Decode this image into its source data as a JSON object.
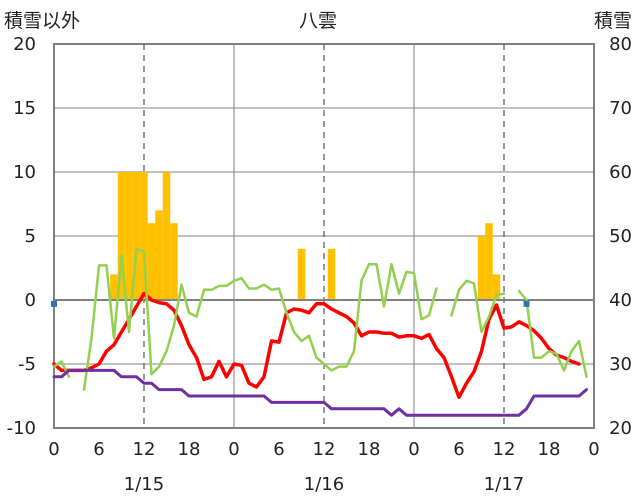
{
  "chart_data": {
    "type": "combo",
    "title": "八雲",
    "left_axis": {
      "label": "積雪以外",
      "range": [
        -10,
        20
      ],
      "ticks": [
        "20",
        "15",
        "10",
        "5",
        "0",
        "-5",
        "-10"
      ]
    },
    "right_axis": {
      "label": "積雪",
      "range": [
        20,
        80
      ],
      "ticks": [
        "80",
        "70",
        "60",
        "50",
        "40",
        "30",
        "20"
      ]
    },
    "x_axis": {
      "unit": "hour",
      "range": [
        0,
        72
      ],
      "tick_labels": [
        "0",
        "6",
        "12",
        "18",
        "0",
        "6",
        "12",
        "18",
        "0",
        "6",
        "12",
        "18",
        "0"
      ],
      "date_labels": [
        {
          "label": "1/15",
          "hour": 12
        },
        {
          "label": "1/16",
          "hour": 36
        },
        {
          "label": "1/17",
          "hour": 60
        }
      ]
    },
    "grid": {
      "day_boundaries_solid": [
        24,
        48
      ],
      "noon_dashed": [
        12,
        36,
        60
      ]
    },
    "colors": {
      "bars": "#ffc000",
      "temperature": "#ff0000",
      "wind": "#92d050",
      "snow_depth": "#7030a0",
      "zero_marker": "#2e75b6",
      "axis": "#808080"
    },
    "series": [
      {
        "type": "bar",
        "axis": "left",
        "color": "#ffc000",
        "points": [
          [
            8,
            2
          ],
          [
            9,
            10
          ],
          [
            10,
            10
          ],
          [
            11,
            10
          ],
          [
            12,
            10
          ],
          [
            13,
            6
          ],
          [
            14,
            7
          ],
          [
            15,
            10
          ],
          [
            16,
            6
          ],
          [
            33,
            4
          ],
          [
            37,
            4
          ],
          [
            57,
            5
          ],
          [
            58,
            6
          ],
          [
            59,
            2
          ]
        ]
      },
      {
        "type": "line",
        "axis": "left",
        "color": "#ff0000",
        "points": [
          [
            0,
            -5
          ],
          [
            1,
            -5.5
          ],
          [
            2,
            -5.5
          ],
          [
            4,
            -5.5
          ],
          [
            5,
            -5.3
          ],
          [
            6,
            -5
          ],
          [
            7,
            -4
          ],
          [
            8,
            -3.5
          ],
          [
            9,
            -2.5
          ],
          [
            10,
            -1.5
          ],
          [
            11,
            -0.5
          ],
          [
            12,
            0.5
          ],
          [
            13,
            0
          ],
          [
            14,
            -0.2
          ],
          [
            15,
            -0.3
          ],
          [
            16,
            -0.8
          ],
          [
            17,
            -2
          ],
          [
            18,
            -3.5
          ],
          [
            19,
            -4.5
          ],
          [
            20,
            -6.2
          ],
          [
            21,
            -6
          ],
          [
            22,
            -4.8
          ],
          [
            23,
            -6
          ],
          [
            24,
            -5
          ],
          [
            25,
            -5.1
          ],
          [
            26,
            -6.5
          ],
          [
            27,
            -6.8
          ],
          [
            28,
            -6
          ],
          [
            29,
            -3.2
          ],
          [
            30,
            -3.3
          ],
          [
            31,
            -1
          ],
          [
            32,
            -0.7
          ],
          [
            33,
            -0.8
          ],
          [
            34,
            -1
          ],
          [
            35,
            -0.3
          ],
          [
            36,
            -0.3
          ],
          [
            37,
            -0.7
          ],
          [
            38,
            -1
          ],
          [
            39,
            -1.3
          ],
          [
            40,
            -1.8
          ],
          [
            41,
            -2.8
          ],
          [
            42,
            -2.5
          ],
          [
            43,
            -2.5
          ],
          [
            44,
            -2.6
          ],
          [
            45,
            -2.6
          ],
          [
            46,
            -2.9
          ],
          [
            47,
            -2.8
          ],
          [
            48,
            -2.8
          ],
          [
            49,
            -3
          ],
          [
            50,
            -2.7
          ],
          [
            51,
            -3.8
          ],
          [
            52,
            -4.5
          ],
          [
            53,
            -6
          ],
          [
            54,
            -7.6
          ],
          [
            55,
            -6.5
          ],
          [
            56,
            -5.6
          ],
          [
            57,
            -4
          ],
          [
            58,
            -1.5
          ],
          [
            59,
            -0.4
          ],
          [
            60,
            -2.2
          ],
          [
            61,
            -2.1
          ],
          [
            62,
            -1.7
          ],
          [
            63,
            -2
          ],
          [
            64,
            -2.4
          ],
          [
            65,
            -3
          ],
          [
            66,
            -3.8
          ],
          [
            67,
            -4.3
          ],
          [
            68,
            -4.5
          ],
          [
            69,
            -4.8
          ],
          [
            70,
            -5
          ]
        ]
      },
      {
        "type": "line",
        "axis": "left",
        "color": "#92d050",
        "segments": [
          [
            [
              0,
              -5.2
            ],
            [
              1,
              -4.8
            ],
            [
              2,
              -6
            ]
          ],
          [
            [
              4,
              -7
            ],
            [
              5,
              -3
            ],
            [
              6,
              2.7
            ],
            [
              7,
              2.7
            ],
            [
              8,
              -3
            ],
            [
              9,
              3.5
            ],
            [
              10,
              -2.5
            ],
            [
              11,
              4
            ],
            [
              12,
              3.8
            ],
            [
              13,
              -5.8
            ],
            [
              14,
              -5.2
            ],
            [
              15,
              -4
            ],
            [
              16,
              -2
            ],
            [
              17,
              1.2
            ],
            [
              18,
              -1
            ],
            [
              19,
              -1.3
            ],
            [
              20,
              0.8
            ],
            [
              21,
              0.8
            ],
            [
              22,
              1.1
            ],
            [
              23,
              1.1
            ],
            [
              24,
              1.5
            ],
            [
              25,
              1.7
            ],
            [
              26,
              0.9
            ],
            [
              27,
              0.9
            ],
            [
              28,
              1.2
            ],
            [
              29,
              0.8
            ],
            [
              30,
              0.9
            ],
            [
              31,
              -1
            ],
            [
              32,
              -2.5
            ],
            [
              33,
              -3.2
            ],
            [
              34,
              -2.8
            ],
            [
              35,
              -4.5
            ],
            [
              36,
              -5
            ],
            [
              37,
              -5.5
            ],
            [
              38,
              -5.2
            ],
            [
              39,
              -5.2
            ],
            [
              40,
              -4
            ],
            [
              41,
              1.5
            ],
            [
              42,
              2.8
            ],
            [
              43,
              2.8
            ],
            [
              44,
              -0.5
            ],
            [
              45,
              2.8
            ],
            [
              46,
              0.5
            ],
            [
              47,
              2.2
            ],
            [
              48,
              2.1
            ],
            [
              49,
              -1.5
            ],
            [
              50,
              -1.2
            ],
            [
              51,
              0.9
            ]
          ],
          [
            [
              53,
              -1.2
            ],
            [
              54,
              0.8
            ],
            [
              55,
              1.5
            ],
            [
              56,
              1.3
            ],
            [
              57,
              -2.5
            ],
            [
              58,
              -1.3
            ],
            [
              59,
              0.4
            ],
            [
              60,
              0.5
            ]
          ],
          [
            [
              62,
              0.7
            ],
            [
              63,
              0
            ],
            [
              64,
              -4.5
            ],
            [
              65,
              -4.5
            ],
            [
              66,
              -4
            ],
            [
              67,
              -4.2
            ],
            [
              68,
              -5.5
            ],
            [
              69,
              -4
            ],
            [
              70,
              -3.2
            ],
            [
              71,
              -6
            ]
          ]
        ]
      },
      {
        "type": "line",
        "axis": "right",
        "color": "#7030a0",
        "points": [
          [
            0,
            28
          ],
          [
            1,
            28
          ],
          [
            2,
            29
          ],
          [
            4,
            29
          ],
          [
            8,
            29
          ],
          [
            9,
            28
          ],
          [
            11,
            28
          ],
          [
            12,
            27
          ],
          [
            13,
            27
          ],
          [
            14,
            26
          ],
          [
            17,
            26
          ],
          [
            18,
            25
          ],
          [
            28,
            25
          ],
          [
            29,
            24
          ],
          [
            36,
            24
          ],
          [
            37,
            23
          ],
          [
            44,
            23
          ],
          [
            45,
            22
          ],
          [
            46,
            23
          ],
          [
            47,
            22
          ],
          [
            62,
            22
          ],
          [
            63,
            23
          ],
          [
            64,
            25
          ],
          [
            70,
            25
          ],
          [
            71,
            26
          ]
        ]
      },
      {
        "type": "points",
        "axis": "left",
        "color": "#2e75b6",
        "points": [
          [
            0,
            -0.3
          ],
          [
            63,
            -0.3
          ]
        ]
      }
    ]
  }
}
